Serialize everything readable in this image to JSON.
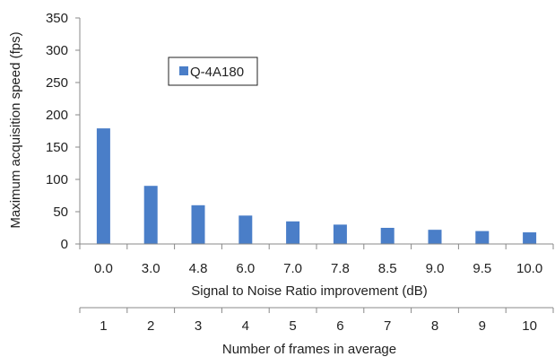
{
  "chart_data": {
    "type": "bar",
    "categories": [
      "0.0",
      "3.0",
      "4.8",
      "6.0",
      "7.0",
      "7.8",
      "8.5",
      "9.0",
      "9.5",
      "10.0"
    ],
    "secondary_categories": [
      "1",
      "2",
      "3",
      "4",
      "5",
      "6",
      "7",
      "8",
      "9",
      "10"
    ],
    "series": [
      {
        "name": "Q-4A180",
        "values": [
          179,
          90,
          60,
          44,
          35,
          30,
          25,
          22,
          20,
          18
        ],
        "color": "#4a7ec8"
      }
    ],
    "xlabel": "Signal to Noise Ratio improvement (dB)",
    "x2label": "Number of frames in average",
    "ylabel": "Maximum acquisition speed (fps)",
    "ylim": [
      0,
      350
    ],
    "yticks": [
      0,
      50,
      100,
      150,
      200,
      250,
      300,
      350
    ],
    "grid": false,
    "legend_position": "top-left"
  }
}
